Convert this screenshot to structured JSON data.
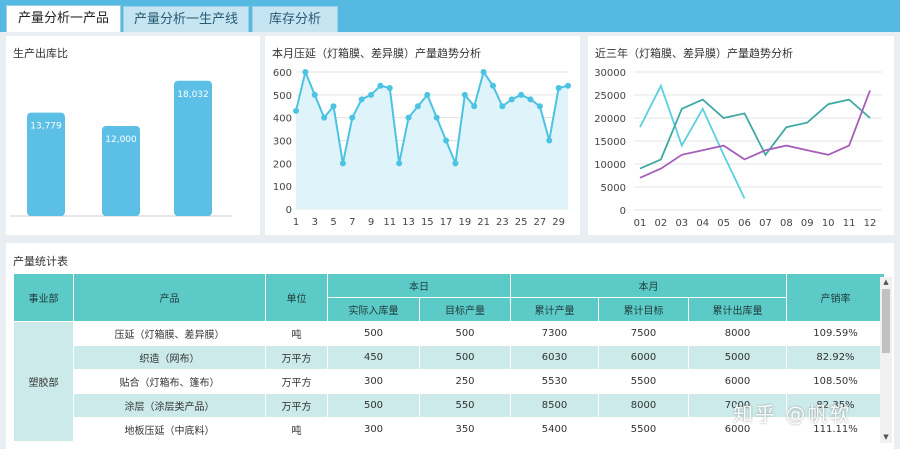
{
  "tabs": [
    {
      "label": "产量分析一产品",
      "active": true
    },
    {
      "label": "产量分析一生产线",
      "active": false
    },
    {
      "label": "库存分析",
      "active": false
    }
  ],
  "panels": {
    "bar_title": "生产出库比",
    "line_title": "本月压延（灯箱膜、差异膜）产量趋势分析",
    "multi_title": "近三年（灯箱膜、差异膜）产量趋势分析",
    "table_title": "产量统计表"
  },
  "chart_data": [
    {
      "type": "bar",
      "title": "生产出库比",
      "categories": [
        "",
        "",
        ""
      ],
      "values": [
        13779,
        12000,
        18032
      ],
      "value_labels": [
        "13,779",
        "12,000",
        "18,032"
      ],
      "bar_color": "#5bbfe6"
    },
    {
      "type": "area",
      "title": "本月压延（灯箱膜、差异膜）产量趋势分析",
      "x": [
        1,
        2,
        3,
        4,
        5,
        6,
        7,
        8,
        9,
        10,
        11,
        12,
        13,
        14,
        15,
        16,
        17,
        18,
        19,
        20,
        21,
        22,
        23,
        24,
        25,
        26,
        27,
        28,
        29,
        30
      ],
      "x_tick_labels": [
        "1",
        "3",
        "5",
        "7",
        "9",
        "11",
        "13",
        "15",
        "17",
        "19",
        "21",
        "23",
        "25",
        "27",
        "29"
      ],
      "values": [
        430,
        600,
        500,
        400,
        450,
        200,
        400,
        480,
        500,
        540,
        530,
        200,
        400,
        450,
        500,
        400,
        300,
        200,
        500,
        450,
        600,
        540,
        450,
        480,
        500,
        480,
        450,
        300,
        530,
        540
      ],
      "ylim": [
        0,
        600
      ],
      "y_ticks": [
        0,
        100,
        200,
        300,
        400,
        500,
        600
      ],
      "color": "#4cc3e3",
      "fill": "#dff3fa"
    },
    {
      "type": "line",
      "title": "近三年（灯箱膜、差异膜）产量趋势分析",
      "categories": [
        "01",
        "02",
        "03",
        "04",
        "05",
        "06",
        "07",
        "08",
        "09",
        "10",
        "11",
        "12"
      ],
      "ylim": [
        0,
        30000
      ],
      "y_ticks": [
        0,
        5000,
        10000,
        15000,
        20000,
        25000,
        30000
      ],
      "series": [
        {
          "values": [
            18000,
            27000,
            14000,
            22000,
            12000,
            2500,
            null,
            null,
            null,
            null,
            null,
            null
          ],
          "color": "#5ccfe0"
        },
        {
          "values": [
            9000,
            11000,
            22000,
            24000,
            20000,
            21000,
            12000,
            18000,
            19000,
            23000,
            24000,
            20000
          ],
          "color": "#3fa9a3"
        },
        {
          "values": [
            7000,
            9000,
            12000,
            13000,
            14000,
            11000,
            13000,
            14000,
            13000,
            12000,
            14000,
            26000
          ],
          "color": "#a65fb8"
        }
      ]
    }
  ],
  "table": {
    "headers": {
      "dept": "事业部",
      "product": "产品",
      "unit": "单位",
      "today": "本日",
      "month": "本月",
      "ratio": "产销率",
      "sub": [
        "实际入库量",
        "目标产量",
        "累计产量",
        "累计目标",
        "累计出库量"
      ]
    },
    "dept_value": "塑胶部",
    "rows": [
      {
        "product": "压延（灯箱膜、差异膜）",
        "unit": "吨",
        "actual": "500",
        "target": "500",
        "cum": "7300",
        "cum_target": "7500",
        "cum_out": "8000",
        "ratio": "109.59%"
      },
      {
        "product": "织造（网布）",
        "unit": "万平方",
        "actual": "450",
        "target": "500",
        "cum": "6030",
        "cum_target": "6000",
        "cum_out": "5000",
        "ratio": "82.92%"
      },
      {
        "product": "贴合（灯箱布、篷布）",
        "unit": "万平方",
        "actual": "300",
        "target": "250",
        "cum": "5530",
        "cum_target": "5500",
        "cum_out": "6000",
        "ratio": "108.50%"
      },
      {
        "product": "涂层（涂层类产品）",
        "unit": "万平方",
        "actual": "500",
        "target": "550",
        "cum": "8500",
        "cum_target": "8000",
        "cum_out": "7000",
        "ratio": "82.35%"
      },
      {
        "product": "地板压延（中底料）",
        "unit": "吨",
        "actual": "300",
        "target": "350",
        "cum": "5400",
        "cum_target": "5500",
        "cum_out": "6000",
        "ratio": "111.11%"
      }
    ]
  },
  "watermark": "知乎 @帆软"
}
